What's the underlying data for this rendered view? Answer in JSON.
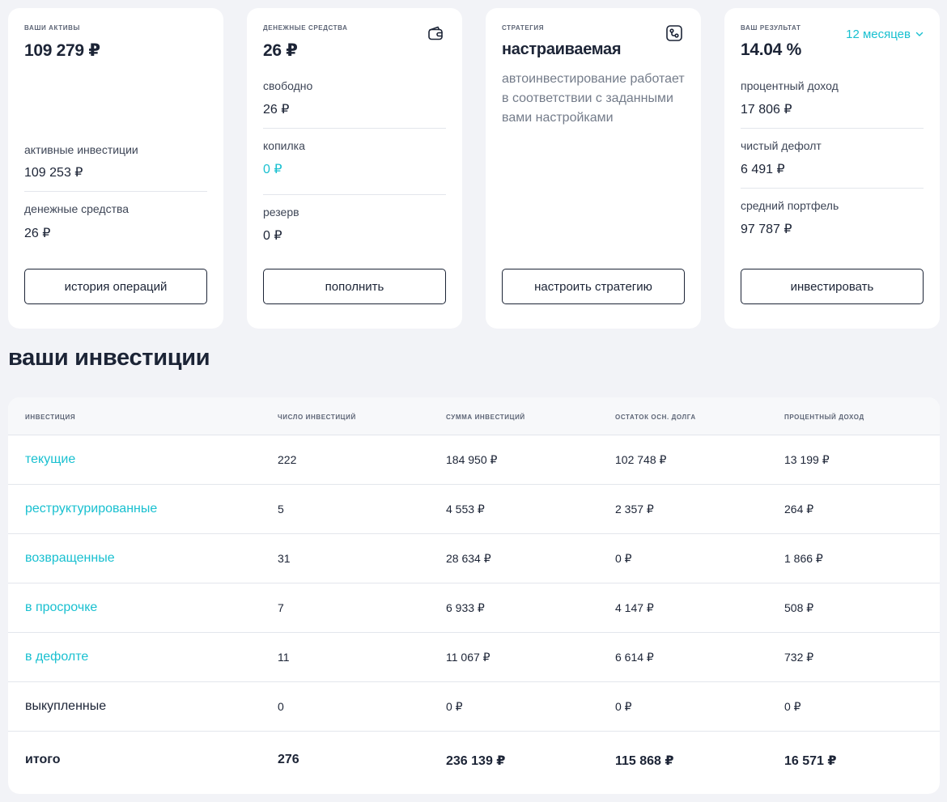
{
  "cards": {
    "assets": {
      "label": "ваши активы",
      "value": "109 279 ₽",
      "rows": [
        {
          "label": "активные инвестиции",
          "value": "109 253 ₽"
        },
        {
          "label": "денежные средства",
          "value": "26 ₽"
        }
      ],
      "button": "история операций"
    },
    "cash": {
      "label": "денежные средства",
      "value": "26 ₽",
      "icon": "wallet-icon",
      "rows": [
        {
          "label": "свободно",
          "value": "26 ₽"
        },
        {
          "label": "копилка",
          "value": "0 ₽"
        },
        {
          "label": "резерв",
          "value": "0 ₽"
        }
      ],
      "button": "пополнить"
    },
    "strategy": {
      "label": "стратегия",
      "value": "настраиваемая",
      "icon": "route-icon",
      "description": "автоинвестирование работает в соответствии с заданными вами настройками",
      "button": "настроить стратегию"
    },
    "result": {
      "label": "ваш результат",
      "value": "14.04 %",
      "period": "12 месяцев",
      "rows": [
        {
          "label": "процентный доход",
          "value": "17 806 ₽"
        },
        {
          "label": "чистый дефолт",
          "value": "6 491 ₽"
        },
        {
          "label": "средний портфель",
          "value": "97 787 ₽"
        }
      ],
      "button": "инвестировать"
    }
  },
  "investments": {
    "title": "ваши инвестиции",
    "columns": [
      "инвестиция",
      "число инвестиций",
      "сумма инвестиций",
      "остаток осн. долга",
      "процентный доход"
    ],
    "rows": [
      {
        "name": "текущие",
        "count": "222",
        "sum": "184 950 ₽",
        "principal": "102 748 ₽",
        "income": "13 199 ₽"
      },
      {
        "name": "реструктурированные",
        "count": "5",
        "sum": "4 553 ₽",
        "principal": "2 357 ₽",
        "income": "264 ₽"
      },
      {
        "name": "возвращенные",
        "count": "31",
        "sum": "28 634 ₽",
        "principal": "0 ₽",
        "income": "1 866 ₽"
      },
      {
        "name": "в просрочке",
        "count": "7",
        "sum": "6 933 ₽",
        "principal": "4 147 ₽",
        "income": "508 ₽"
      },
      {
        "name": "в дефолте",
        "count": "11",
        "sum": "11 067 ₽",
        "principal": "6 614 ₽",
        "income": "732 ₽"
      },
      {
        "name": "выкупленные",
        "count": "0",
        "sum": "0 ₽",
        "principal": "0 ₽",
        "income": "0 ₽"
      }
    ],
    "total": {
      "name": "итого",
      "count": "276",
      "sum": "236 139 ₽",
      "principal": "115 868 ₽",
      "income": "16 571 ₽"
    }
  },
  "colors": {
    "accent": "#19c0d0",
    "text": "#1c2436",
    "background": "#f2f3f7"
  }
}
